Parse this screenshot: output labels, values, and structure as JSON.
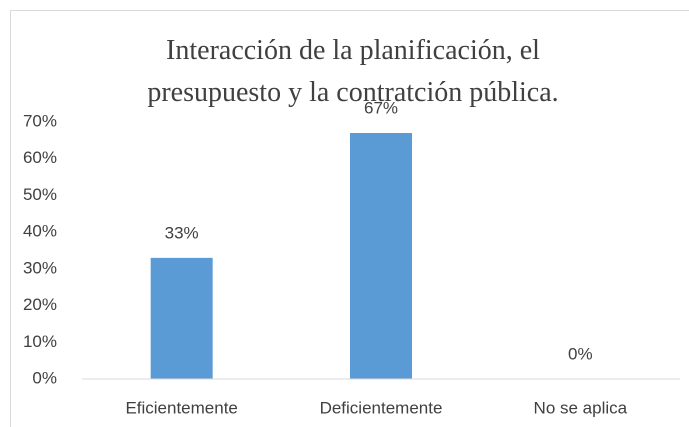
{
  "chart_data": {
    "type": "bar",
    "title": "Interacción de la planificación, el presupuesto y la contratción pública.",
    "categories": [
      "Eficientemente",
      "Deficientemente",
      "No se aplica"
    ],
    "values": [
      33,
      67,
      0
    ],
    "value_labels": [
      "33%",
      "67%",
      "0%"
    ],
    "color": "#5b9bd5",
    "ylim": [
      0,
      70
    ],
    "yticks": [
      {
        "value": 0,
        "label": "0%"
      },
      {
        "value": 10,
        "label": "10%"
      },
      {
        "value": 20,
        "label": "20%"
      },
      {
        "value": 30,
        "label": "30%"
      },
      {
        "value": 40,
        "label": "40%"
      },
      {
        "value": 50,
        "label": "50%"
      },
      {
        "value": 60,
        "label": "60%"
      },
      {
        "value": 70,
        "label": "70%"
      }
    ],
    "grid": false
  }
}
